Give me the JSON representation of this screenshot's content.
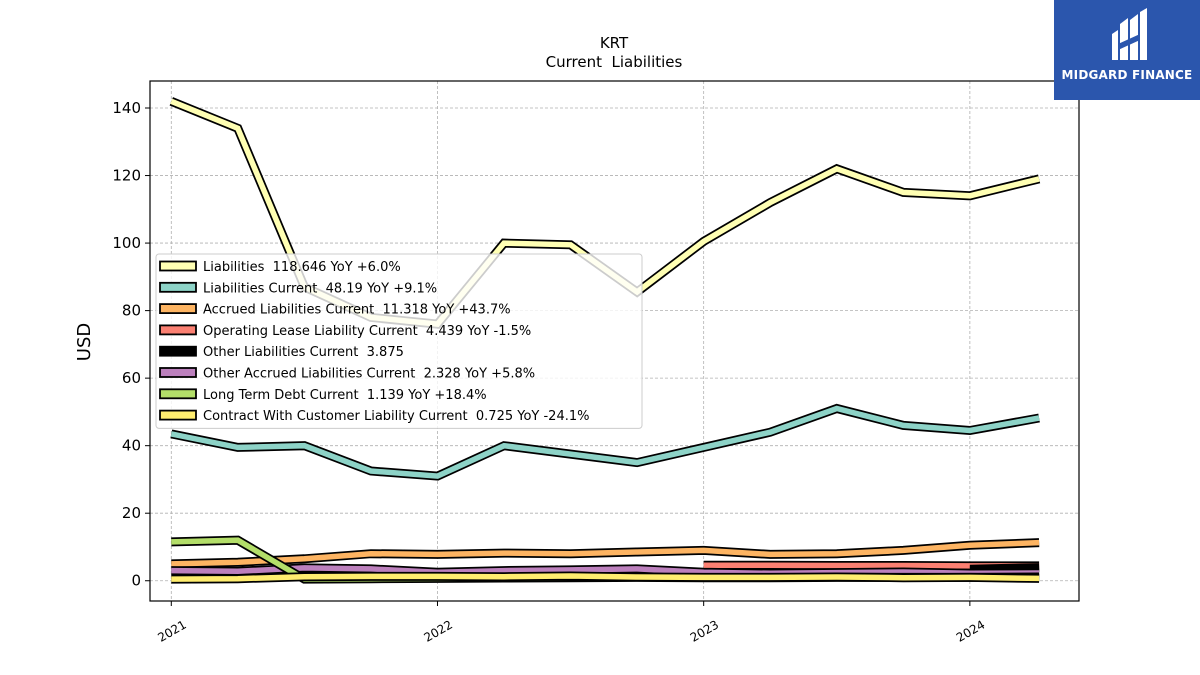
{
  "chart_data": {
    "type": "line",
    "title": "KRT",
    "subtitle": "Current  Liabilities",
    "ylabel": "USD",
    "xlabel": "",
    "ylim": [
      -6,
      148
    ],
    "yticks": [
      0,
      20,
      40,
      60,
      80,
      100,
      120,
      140
    ],
    "xlim": [
      2020.92,
      2024.41
    ],
    "xticks": [
      {
        "value": 2021,
        "label": "2021"
      },
      {
        "value": 2022,
        "label": "2022"
      },
      {
        "value": 2023,
        "label": "2023"
      },
      {
        "value": 2024,
        "label": "2024"
      }
    ],
    "grid": true,
    "legend_position": "center-left",
    "series": [
      {
        "name": "Liabilities  118.646 YoY +6.0%",
        "color": "#ffffb3",
        "x": [
          2021.0,
          2021.25,
          2021.5,
          2021.75,
          2022.0,
          2022.25,
          2022.5,
          2022.75,
          2023.0,
          2023.25,
          2023.5,
          2023.75,
          2024.0,
          2024.26
        ],
        "y": [
          142,
          134,
          87,
          78,
          76,
          100,
          99.5,
          85.5,
          100.5,
          112,
          122,
          115,
          114,
          119
        ]
      },
      {
        "name": "Liabilities Current  48.19 YoY +9.1%",
        "color": "#8dd3c7",
        "x": [
          2021.0,
          2021.25,
          2021.5,
          2021.75,
          2022.0,
          2022.25,
          2022.5,
          2022.75,
          2023.0,
          2023.25,
          2023.5,
          2023.75,
          2024.0,
          2024.26
        ],
        "y": [
          43.5,
          39.5,
          40,
          32.5,
          31,
          40,
          37.5,
          35,
          39.5,
          44,
          51,
          46,
          44.5,
          48.2
        ]
      },
      {
        "name": "Accrued Liabilities Current  11.318 YoY +43.7%",
        "color": "#fdb462",
        "x": [
          2021.0,
          2021.25,
          2021.5,
          2021.75,
          2022.0,
          2022.25,
          2022.5,
          2022.75,
          2023.0,
          2023.25,
          2023.5,
          2023.75,
          2024.0,
          2024.26
        ],
        "y": [
          5,
          5.5,
          6.5,
          8,
          7.8,
          8.2,
          8,
          8.5,
          9,
          7.8,
          8,
          9,
          10.5,
          11.3
        ]
      },
      {
        "name": "Operating Lease Liability Current  4.439 YoY -1.5%",
        "color": "#fb8072",
        "x": [
          2023.0,
          2023.25,
          2023.5,
          2023.75,
          2024.0,
          2024.26
        ],
        "y": [
          4.6,
          4.6,
          4.5,
          4.5,
          4.4,
          4.4
        ]
      },
      {
        "name": "Other Liabilities Current  3.875",
        "color": "#000000",
        "x": [
          2024.0,
          2024.26
        ],
        "y": [
          3.4,
          3.9
        ]
      },
      {
        "name": "Other Accrued Liabilities Current  2.328 YoY +5.8%",
        "color": "#bc80bd",
        "x": [
          2021.0,
          2021.25,
          2021.5,
          2021.75,
          2022.0,
          2022.25,
          2022.5,
          2022.75,
          2023.0,
          2023.25,
          2023.5,
          2023.75,
          2024.0,
          2024.26
        ],
        "y": [
          3,
          2.8,
          3.8,
          3.5,
          2.5,
          3,
          3.2,
          3.5,
          2.5,
          2.2,
          2.4,
          2.6,
          2.2,
          2.3
        ]
      },
      {
        "name": "Long Term Debt Current  1.139 YoY +18.4%",
        "color": "#b3de69",
        "x": [
          2021.0,
          2021.25,
          2021.5,
          2021.75,
          2022.0,
          2022.25,
          2022.5,
          2022.75,
          2023.0,
          2023.25,
          2023.5,
          2023.75,
          2024.0,
          2024.26
        ],
        "y": [
          11.5,
          12,
          0.5,
          0.6,
          0.7,
          0.8,
          0.9,
          1.0,
          0.9,
          0.9,
          1.0,
          1.0,
          1.0,
          1.1
        ]
      },
      {
        "name": "Contract With Customer Liability Current  0.725 YoY -24.1%",
        "color": "#ffed6f",
        "x": [
          2021.0,
          2021.25,
          2021.5,
          2021.75,
          2022.0,
          2022.25,
          2022.5,
          2022.75,
          2023.0,
          2023.25,
          2023.5,
          2023.75,
          2024.0,
          2024.26
        ],
        "y": [
          0.5,
          0.6,
          1.2,
          1.3,
          1.3,
          1.2,
          1.4,
          1.1,
          1.0,
          1.0,
          1.1,
          0.9,
          1.0,
          0.7
        ]
      }
    ]
  },
  "logo": {
    "text": "MIDGARD FINANCE",
    "color": "#2b56ad"
  }
}
